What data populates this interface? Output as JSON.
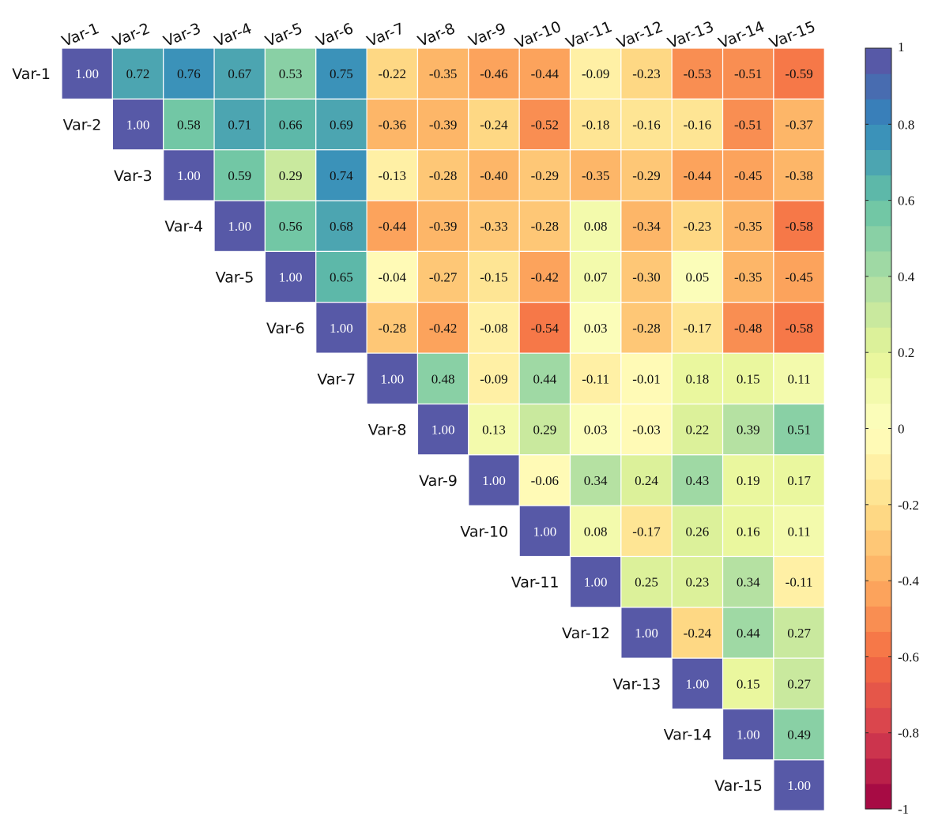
{
  "chart_data": {
    "type": "heatmap",
    "triangle": "upper",
    "labels": [
      "Var-1",
      "Var-2",
      "Var-3",
      "Var-4",
      "Var-5",
      "Var-6",
      "Var-7",
      "Var-8",
      "Var-9",
      "Var-10",
      "Var-11",
      "Var-12",
      "Var-13",
      "Var-14",
      "Var-15"
    ],
    "matrix": [
      [
        1.0,
        0.72,
        0.76,
        0.67,
        0.53,
        0.75,
        -0.22,
        -0.35,
        -0.46,
        -0.44,
        -0.09,
        -0.23,
        -0.53,
        -0.51,
        -0.59
      ],
      [
        null,
        1.0,
        0.58,
        0.71,
        0.66,
        0.69,
        -0.36,
        -0.39,
        -0.24,
        -0.52,
        -0.18,
        -0.16,
        -0.16,
        -0.51,
        -0.37
      ],
      [
        null,
        null,
        1.0,
        0.59,
        0.29,
        0.74,
        -0.13,
        -0.28,
        -0.4,
        -0.29,
        -0.35,
        -0.29,
        -0.44,
        -0.45,
        -0.38
      ],
      [
        null,
        null,
        null,
        1.0,
        0.56,
        0.68,
        -0.44,
        -0.39,
        -0.33,
        -0.28,
        0.08,
        -0.34,
        -0.23,
        -0.35,
        -0.58
      ],
      [
        null,
        null,
        null,
        null,
        1.0,
        0.65,
        -0.04,
        -0.27,
        -0.15,
        -0.42,
        0.07,
        -0.3,
        0.05,
        -0.35,
        -0.45
      ],
      [
        null,
        null,
        null,
        null,
        null,
        1.0,
        -0.28,
        -0.42,
        -0.08,
        -0.54,
        0.03,
        -0.28,
        -0.17,
        -0.48,
        -0.58
      ],
      [
        null,
        null,
        null,
        null,
        null,
        null,
        1.0,
        0.48,
        -0.09,
        0.44,
        -0.11,
        -0.01,
        0.18,
        0.15,
        0.11
      ],
      [
        null,
        null,
        null,
        null,
        null,
        null,
        null,
        1.0,
        0.13,
        0.29,
        0.03,
        -0.03,
        0.22,
        0.39,
        0.51
      ],
      [
        null,
        null,
        null,
        null,
        null,
        null,
        null,
        null,
        1.0,
        -0.06,
        0.34,
        0.24,
        0.43,
        0.19,
        0.17
      ],
      [
        null,
        null,
        null,
        null,
        null,
        null,
        null,
        null,
        null,
        1.0,
        0.08,
        -0.17,
        0.26,
        0.16,
        0.11
      ],
      [
        null,
        null,
        null,
        null,
        null,
        null,
        null,
        null,
        null,
        null,
        1.0,
        0.25,
        0.23,
        0.34,
        -0.11
      ],
      [
        null,
        null,
        null,
        null,
        null,
        null,
        null,
        null,
        null,
        null,
        null,
        1.0,
        -0.24,
        0.44,
        0.27
      ],
      [
        null,
        null,
        null,
        null,
        null,
        null,
        null,
        null,
        null,
        null,
        null,
        null,
        1.0,
        0.15,
        0.27
      ],
      [
        null,
        null,
        null,
        null,
        null,
        null,
        null,
        null,
        null,
        null,
        null,
        null,
        null,
        1.0,
        0.49
      ],
      [
        null,
        null,
        null,
        null,
        null,
        null,
        null,
        null,
        null,
        null,
        null,
        null,
        null,
        null,
        1.0
      ]
    ],
    "value_format": "2 decimals",
    "colorbar": {
      "range": [
        -1,
        1
      ],
      "ticks": [
        1,
        0.8,
        0.6,
        0.4,
        0.2,
        0,
        -0.2,
        -0.4,
        -0.6,
        -0.8,
        -1
      ],
      "tick_labels": [
        "1",
        "0.8",
        "0.6",
        "0.4",
        "0.2",
        "0",
        "-0.2",
        "-0.4",
        "-0.6",
        "-0.8",
        "-1"
      ],
      "steps": 30,
      "colormap": "Spectral",
      "colormap_stops": [
        "#9e0142",
        "#d53e4f",
        "#f46d43",
        "#fdae61",
        "#fee08b",
        "#ffffbf",
        "#e6f598",
        "#abdda4",
        "#66c2a5",
        "#3288bd",
        "#5e4fa2"
      ]
    },
    "grid": true
  }
}
